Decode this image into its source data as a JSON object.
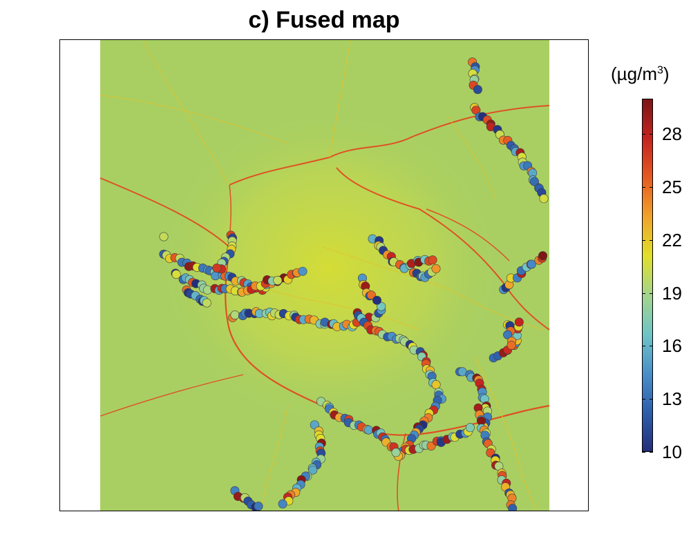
{
  "title": "c) Fused map",
  "colorbar": {
    "unit_prefix": "(µg/m",
    "unit_exp": "3",
    "unit_suffix": ")",
    "min": 10,
    "max": 30,
    "ticks": [
      10,
      13,
      16,
      19,
      22,
      25,
      28
    ],
    "colors": [
      "#232e7a",
      "#2e5eab",
      "#4a8fc9",
      "#6fc4c6",
      "#a4d58c",
      "#e1df2a",
      "#f0a22b",
      "#e55a22",
      "#c42420",
      "#7a1614"
    ]
  },
  "background": {
    "field_color": "#a9cf62",
    "urban_color": "#d5dc3a",
    "road_color": "#e8391a"
  },
  "legend_items": []
}
